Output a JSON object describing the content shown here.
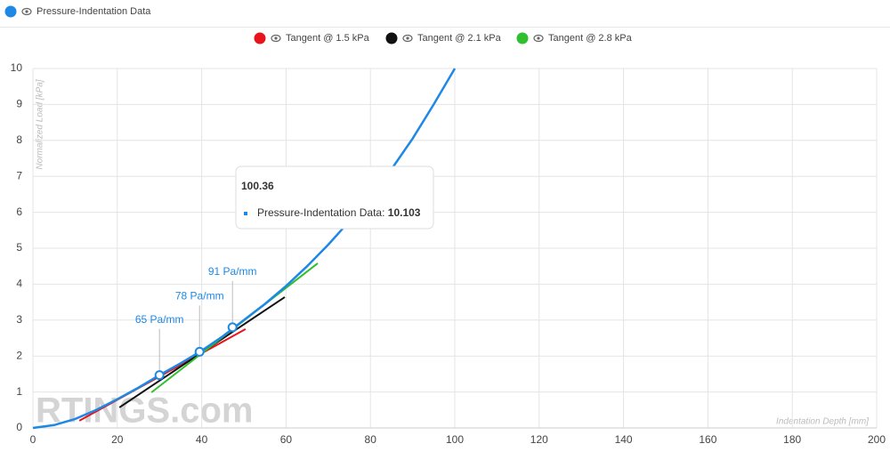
{
  "chart_data": {
    "type": "line",
    "title": "Pressure-Indentation Data",
    "x_label": "Indentation Depth [mm]",
    "y_label": "Normalized Load [kPa]",
    "watermark": "RTINGS.com",
    "xlim": [
      0,
      200
    ],
    "xticks": [
      0,
      20,
      40,
      60,
      80,
      100,
      120,
      140,
      160,
      180,
      200
    ],
    "ylim": [
      0,
      10
    ],
    "yticks": [
      0,
      1,
      2,
      3,
      4,
      5,
      6,
      7,
      8,
      9,
      10
    ],
    "grid": true,
    "series": [
      {
        "name": "Pressure-Indentation Data",
        "color": "#1e88e5",
        "x": [
          0,
          5,
          10,
          15,
          20,
          25,
          30,
          35,
          40,
          45,
          50,
          55,
          60,
          65,
          70,
          75,
          80,
          85,
          90,
          95,
          100
        ],
        "values": [
          0,
          0.08,
          0.25,
          0.5,
          0.8,
          1.12,
          1.47,
          1.8,
          2.15,
          2.55,
          3.0,
          3.45,
          3.95,
          4.5,
          5.1,
          5.75,
          6.45,
          7.2,
          8.05,
          9.0,
          10
        ]
      },
      {
        "name": "Tangent @ 1.5 kPa",
        "color": "#e8141c",
        "x": [
          11,
          50.4
        ],
        "values": [
          0.2,
          2.75
        ]
      },
      {
        "name": "Tangent @ 2.1 kPa",
        "color": "#111111",
        "x": [
          20.5,
          59.7
        ],
        "values": [
          0.57,
          3.64
        ]
      },
      {
        "name": "Tangent @ 2.8 kPa",
        "color": "#2fbf2f",
        "x": [
          28.1,
          67.5
        ],
        "values": [
          0.99,
          4.58
        ]
      }
    ],
    "markers": {
      "x": [
        30,
        39.5,
        47.3
      ],
      "values": [
        1.47,
        2.12,
        2.8
      ],
      "labels": [
        "65 Pa/mm",
        "78 Pa/mm",
        "91 Pa/mm"
      ]
    },
    "tooltip": {
      "x": 100.36,
      "label": "Pressure-Indentation Data:",
      "value": 10.103
    }
  }
}
